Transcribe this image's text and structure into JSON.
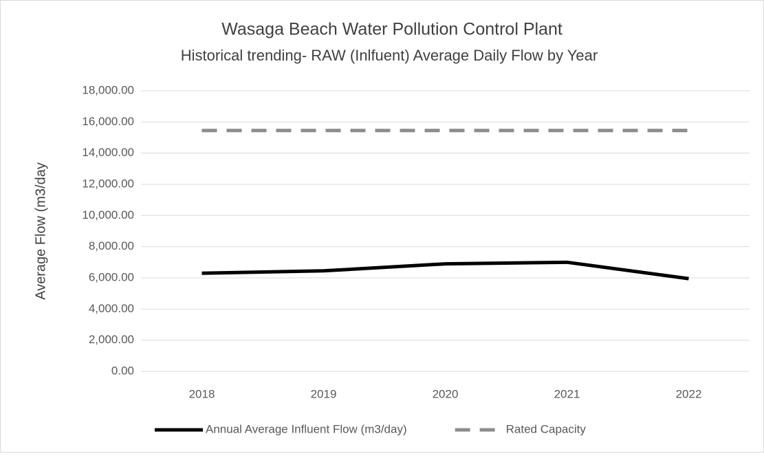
{
  "chart_data": {
    "type": "line",
    "title": "Wasaga Beach Water Pollution Control Plant",
    "subtitle": "Historical trending- RAW (Inlfuent) Average Daily Flow by Year",
    "y_label": "Average Flow (m3/day",
    "categories": [
      "2018",
      "2019",
      "2020",
      "2021",
      "2022"
    ],
    "series": [
      {
        "name": "Annual Average Influent Flow (m3/day)",
        "color": "#000000",
        "dash": false,
        "values": [
          6300,
          6450,
          6900,
          7000,
          5950
        ]
      },
      {
        "name": "Rated Capacity",
        "color": "#8c8c8c",
        "dash": true,
        "values": [
          15450,
          15450,
          15450,
          15450,
          15450
        ]
      }
    ],
    "ylim": [
      0,
      18000
    ],
    "yticks": [
      {
        "value": 0,
        "label": "0.00"
      },
      {
        "value": 2000,
        "label": "2,000.00"
      },
      {
        "value": 4000,
        "label": "4,000.00"
      },
      {
        "value": 6000,
        "label": "6,000.00"
      },
      {
        "value": 8000,
        "label": "8,000.00"
      },
      {
        "value": 10000,
        "label": "10,000.00"
      },
      {
        "value": 12000,
        "label": "12,000.00"
      },
      {
        "value": 14000,
        "label": "14,000.00"
      },
      {
        "value": 16000,
        "label": "16,000.00"
      },
      {
        "value": 18000,
        "label": "18,000.00"
      }
    ],
    "grid": true,
    "legend": "bottom"
  }
}
